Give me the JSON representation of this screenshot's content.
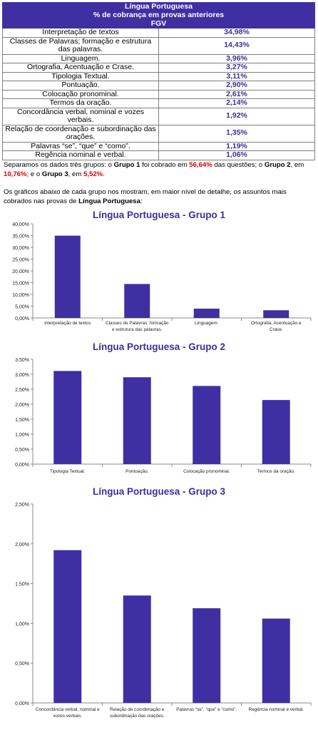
{
  "header": {
    "title": "Língua Portuguesa",
    "subtitle": "% de cobrança em provas anteriores",
    "org": "FGV"
  },
  "rows": [
    {
      "topic": "Interpretação de textos",
      "value": "34,98%"
    },
    {
      "topic": "Classes de Palavras; formação e estrutura das palavras.",
      "value": "14,43%"
    },
    {
      "topic": "Linguagem.",
      "value": "3,96%"
    },
    {
      "topic": "Ortografia, Acentuação e Crase.",
      "value": "3,27%"
    },
    {
      "topic": "Tipologia Textual.",
      "value": "3,11%"
    },
    {
      "topic": "Pontuação.",
      "value": "2,90%"
    },
    {
      "topic": "Colocação pronominal.",
      "value": "2,61%"
    },
    {
      "topic": "Termos da oração.",
      "value": "2,14%"
    },
    {
      "topic": "Concordância verbal, nominal e vozes verbais.",
      "value": "1,92%"
    },
    {
      "topic": "Relação de coordenação e subordinação das orações.",
      "value": "1,35%"
    },
    {
      "topic": "Palavras “se”, “que” e “como”.",
      "value": "1,19%"
    },
    {
      "topic": "Regência nominal e verbal.",
      "value": "1,06%"
    }
  ],
  "paragraph1": {
    "p1": "Separamos os dados três grupos: o ",
    "g1": "Grupo 1",
    "p2": " foi cobrado em ",
    "v1": "56,64%",
    "p3": " das questões; o ",
    "g2": "Grupo 2",
    "p4": ", em ",
    "v2": "10,76%",
    "p5": "; e o ",
    "g3": "Grupo 3",
    "p6": ", em ",
    "v3": "5,52%",
    "p7": "."
  },
  "paragraph2": {
    "p1": "Os gráficos abaixo de cada grupo nos mostram, em maior nível de detalhe, os assuntos mais cobrados nas provas de ",
    "bold": "Língua Portuguesa",
    "p2": ":"
  },
  "colors": {
    "bar": "#3f2fa3",
    "title": "#3a2f9c",
    "header_bg": "#3f2fa3",
    "highlight": "#e00000"
  },
  "chart_data": [
    {
      "type": "bar",
      "title": "Língua Portuguesa - Grupo 1",
      "categories": [
        [
          "Interpretação de textos"
        ],
        [
          "Classes de Palavras; formação",
          "e estrutura das palavras."
        ],
        [
          "Linguagem."
        ],
        [
          "Ortografia, Acentuação e",
          "Crase."
        ]
      ],
      "values": [
        34.98,
        14.43,
        3.96,
        3.27
      ],
      "ylim": [
        0,
        40
      ],
      "yticks": [
        "0,00%",
        "5,00%",
        "10,00%",
        "15,00%",
        "20,00%",
        "25,00%",
        "30,00%",
        "35,00%",
        "40,00%"
      ],
      "grid": false
    },
    {
      "type": "bar",
      "title": "Língua Portuguesa - Grupo 2",
      "categories": [
        [
          "Tipologia Textual."
        ],
        [
          "Pontuação."
        ],
        [
          "Colocação pronominal."
        ],
        [
          "Termos da oração."
        ]
      ],
      "values": [
        3.11,
        2.9,
        2.61,
        2.14
      ],
      "ylim": [
        0,
        3.5
      ],
      "yticks": [
        "0,00%",
        "0,50%",
        "1,00%",
        "1,50%",
        "2,00%",
        "2,50%",
        "3,00%",
        "3,50%"
      ],
      "grid": false
    },
    {
      "type": "bar",
      "title": "Língua Portuguesa - Grupo 3",
      "categories": [
        [
          "Concordância verbal, nominal e",
          "vozes verbais."
        ],
        [
          "Relação de coordenação e",
          "subordinação das orações."
        ],
        [
          "Palavras “se”, “que” e “como”."
        ],
        [
          "Regência nominal e verbal."
        ]
      ],
      "values": [
        1.92,
        1.35,
        1.19,
        1.06
      ],
      "ylim": [
        0,
        2.5
      ],
      "yticks": [
        "0,00%",
        "0,50%",
        "1,00%",
        "1,50%",
        "2,00%",
        "2,50%"
      ],
      "grid": false
    }
  ]
}
